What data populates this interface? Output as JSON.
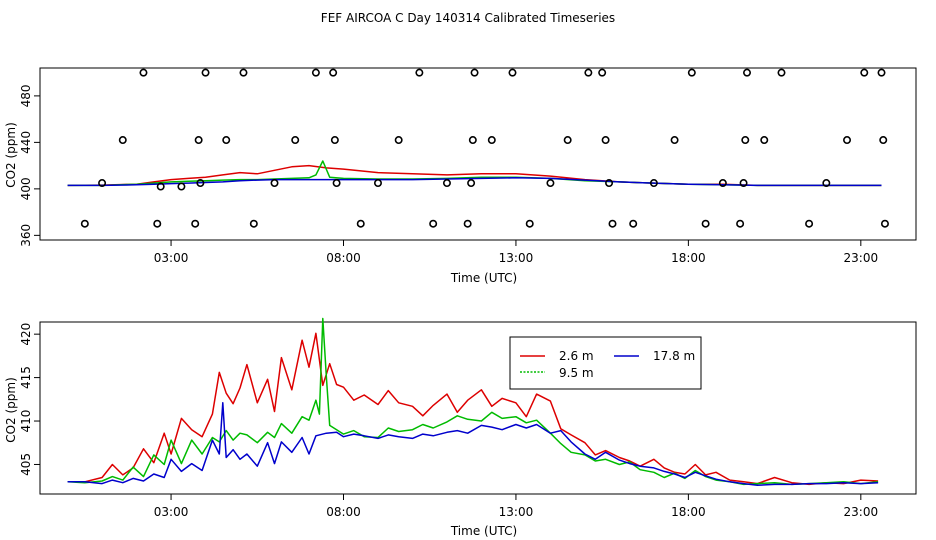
{
  "figure": {
    "title": "FEF AIRCOA C  Day 140314  Calibrated Timeseries"
  },
  "chart_data": [
    {
      "type": "scatter",
      "title": "",
      "xlabel": "Time (UTC)",
      "ylabel": "CO2 (ppm)",
      "xlim": [
        -0.8,
        24.6
      ],
      "ylim": [
        356,
        504
      ],
      "x_ticks": [
        3,
        8,
        13,
        18,
        23
      ],
      "x_tick_labels": [
        "03:00",
        "08:00",
        "13:00",
        "18:00",
        "23:00"
      ],
      "y_ticks": [
        360,
        400,
        440,
        480
      ],
      "y_tick_labels": [
        "360",
        "400",
        "440",
        "480"
      ],
      "series": [
        {
          "name": "2.6 m",
          "color": "#dd0000",
          "kind": "line",
          "x": [
            0.0,
            1.0,
            2.0,
            2.5,
            3.0,
            3.5,
            4.0,
            4.5,
            5.0,
            5.5,
            6.0,
            6.5,
            7.0,
            7.5,
            8.0,
            9.0,
            10.0,
            11.0,
            12.0,
            13.0,
            14.0,
            15.0,
            16.0,
            17.0,
            18.0,
            19.0,
            20.0,
            21.0,
            22.0,
            23.0,
            23.6
          ],
          "y": [
            403,
            403.2,
            404,
            406,
            408,
            409,
            410,
            412,
            414,
            413,
            416,
            419,
            420,
            418,
            417,
            414,
            413,
            412,
            413,
            413,
            411,
            408,
            406,
            405,
            404,
            404,
            403,
            403,
            403,
            403,
            403
          ]
        },
        {
          "name": "9.5 m",
          "color": "#00bb00",
          "kind": "line",
          "x": [
            0.0,
            1.0,
            2.0,
            2.5,
            3.0,
            3.5,
            4.0,
            4.5,
            5.0,
            5.5,
            6.0,
            6.5,
            7.0,
            7.2,
            7.4,
            7.6,
            8.0,
            9.0,
            10.0,
            11.0,
            12.0,
            13.0,
            14.0,
            15.0,
            16.0,
            17.0,
            18.0,
            19.0,
            20.0,
            21.0,
            22.0,
            23.0,
            23.6
          ],
          "y": [
            403,
            403,
            404,
            405,
            406,
            406.5,
            407,
            407.5,
            408,
            408,
            408.5,
            409,
            409.5,
            412,
            424,
            410,
            409,
            408.5,
            408.5,
            409,
            410,
            410,
            409,
            407,
            406,
            405,
            404,
            403.5,
            403,
            403,
            403,
            403,
            403
          ]
        },
        {
          "name": "17.8 m",
          "color": "#0000cc",
          "kind": "line",
          "x": [
            0.0,
            1.0,
            2.0,
            2.5,
            3.0,
            3.5,
            4.0,
            4.5,
            5.0,
            5.5,
            6.0,
            6.5,
            7.0,
            7.5,
            8.0,
            9.0,
            10.0,
            11.0,
            12.0,
            13.0,
            14.0,
            15.0,
            16.0,
            17.0,
            18.0,
            19.0,
            20.0,
            21.0,
            22.0,
            23.0,
            23.6
          ],
          "y": [
            403,
            403,
            403.5,
            404,
            404.5,
            405,
            405.5,
            406,
            407,
            407.5,
            408,
            408,
            408,
            408,
            408,
            408,
            408,
            408.5,
            409,
            409.5,
            409,
            407.5,
            406,
            405,
            404,
            403.5,
            403,
            403,
            403,
            403,
            403
          ]
        },
        {
          "name": "outliers",
          "color": "#000000",
          "kind": "points",
          "x": [
            0.5,
            1.0,
            1.6,
            2.2,
            2.6,
            2.7,
            3.3,
            3.7,
            3.8,
            3.85,
            4.0,
            4.6,
            5.1,
            5.4,
            6.0,
            6.6,
            7.2,
            7.7,
            7.75,
            7.8,
            8.5,
            9.0,
            9.6,
            10.2,
            10.6,
            11.0,
            11.6,
            11.7,
            11.75,
            11.8,
            12.3,
            12.9,
            13.4,
            14.0,
            14.5,
            15.1,
            15.5,
            15.6,
            15.7,
            15.8,
            16.4,
            17.0,
            17.6,
            18.1,
            18.5,
            19.0,
            19.5,
            19.6,
            19.65,
            19.7,
            20.2,
            20.7,
            21.5,
            22.0,
            22.6,
            23.1,
            23.6,
            23.65,
            23.7
          ],
          "y": [
            370,
            405,
            442,
            500,
            370,
            402,
            402,
            370,
            442,
            405,
            500,
            442,
            500,
            370,
            405,
            442,
            500,
            500,
            442,
            405,
            370,
            405,
            442,
            500,
            370,
            405,
            370,
            405,
            442,
            500,
            442,
            500,
            370,
            405,
            442,
            500,
            500,
            442,
            405,
            370,
            370,
            405,
            442,
            500,
            370,
            405,
            370,
            405,
            442,
            500,
            442,
            500,
            370,
            405,
            442,
            500,
            500,
            442,
            370
          ]
        }
      ]
    },
    {
      "type": "line",
      "title": "",
      "xlabel": "Time (UTC)",
      "ylabel": "CO2 (ppm)",
      "xlim": [
        -0.8,
        24.6
      ],
      "ylim": [
        401.6,
        421.4
      ],
      "x_ticks": [
        3,
        8,
        13,
        18,
        23
      ],
      "x_tick_labels": [
        "03:00",
        "08:00",
        "13:00",
        "18:00",
        "23:00"
      ],
      "y_ticks": [
        405,
        410,
        415,
        420
      ],
      "y_tick_labels": [
        "405",
        "410",
        "415",
        "420"
      ],
      "legend": {
        "position": "top-center",
        "entries": [
          "2.6 m",
          "9.5 m",
          "17.8 m"
        ]
      },
      "series": [
        {
          "name": "2.6 m",
          "color": "#dd0000",
          "x": [
            0.0,
            0.5,
            1.0,
            1.3,
            1.6,
            1.9,
            2.2,
            2.5,
            2.8,
            3.0,
            3.3,
            3.6,
            3.9,
            4.2,
            4.4,
            4.6,
            4.8,
            5.0,
            5.2,
            5.5,
            5.8,
            6.0,
            6.2,
            6.5,
            6.8,
            7.0,
            7.2,
            7.4,
            7.6,
            7.8,
            8.0,
            8.3,
            8.6,
            9.0,
            9.3,
            9.6,
            10.0,
            10.3,
            10.6,
            11.0,
            11.3,
            11.6,
            12.0,
            12.3,
            12.6,
            13.0,
            13.3,
            13.6,
            14.0,
            14.3,
            14.6,
            15.0,
            15.3,
            15.6,
            16.0,
            16.3,
            16.6,
            17.0,
            17.3,
            17.6,
            17.9,
            18.2,
            18.5,
            18.8,
            19.2,
            19.6,
            20.0,
            20.5,
            21.0,
            21.5,
            22.0,
            22.5,
            23.0,
            23.5
          ],
          "y": [
            403,
            403,
            403.5,
            405,
            403.8,
            404.6,
            406.8,
            405.2,
            408.6,
            406.2,
            410.3,
            409,
            408.2,
            410.8,
            415.6,
            413.2,
            412,
            413.8,
            416.5,
            412.1,
            414.8,
            411.1,
            417.3,
            413.6,
            419.3,
            416.2,
            420.1,
            414.1,
            416.6,
            414.2,
            413.9,
            412.4,
            413,
            411.9,
            413.5,
            412.1,
            411.7,
            410.6,
            411.8,
            413.1,
            411,
            412.4,
            413.6,
            411.7,
            412.6,
            412.1,
            410.5,
            413.1,
            412.3,
            409.1,
            408.4,
            407.5,
            406.1,
            406.6,
            405.8,
            405.4,
            404.8,
            405.6,
            404.6,
            404.1,
            403.9,
            405,
            403.8,
            404.1,
            403.2,
            403,
            402.8,
            403.5,
            402.9,
            402.7,
            402.9,
            402.8,
            403.2,
            403.1
          ]
        },
        {
          "name": "9.5 m",
          "color": "#00bb00",
          "x": [
            0.0,
            0.5,
            1.0,
            1.3,
            1.6,
            1.9,
            2.2,
            2.5,
            2.8,
            3.0,
            3.3,
            3.6,
            3.9,
            4.2,
            4.4,
            4.6,
            4.8,
            5.0,
            5.2,
            5.5,
            5.8,
            6.0,
            6.2,
            6.5,
            6.8,
            7.0,
            7.2,
            7.3,
            7.4,
            7.5,
            7.6,
            7.8,
            8.0,
            8.3,
            8.6,
            9.0,
            9.3,
            9.6,
            10.0,
            10.3,
            10.6,
            11.0,
            11.3,
            11.6,
            12.0,
            12.3,
            12.6,
            13.0,
            13.3,
            13.6,
            14.0,
            14.3,
            14.6,
            15.0,
            15.3,
            15.6,
            16.0,
            16.3,
            16.6,
            17.0,
            17.3,
            17.6,
            17.9,
            18.2,
            18.5,
            18.8,
            19.2,
            19.6,
            20.0,
            20.5,
            21.0,
            21.5,
            22.0,
            22.5,
            23.0,
            23.5
          ],
          "y": [
            403,
            402.9,
            403.1,
            403.6,
            403.2,
            404.7,
            403.6,
            406.1,
            405,
            407.8,
            405.1,
            407.8,
            406.2,
            408.1,
            407.6,
            408.9,
            407.8,
            408.6,
            408.4,
            407.5,
            408.7,
            408.1,
            409.7,
            408.6,
            410.5,
            410.1,
            412.4,
            410.8,
            421.8,
            415.2,
            409.5,
            409,
            408.5,
            408.9,
            408.2,
            408.1,
            409.2,
            408.8,
            409,
            409.6,
            409.2,
            409.9,
            410.6,
            410.2,
            410,
            411,
            410.3,
            410.5,
            409.8,
            410.1,
            408.6,
            407.4,
            406.4,
            406.1,
            405.4,
            405.6,
            405,
            405.3,
            404.4,
            404.1,
            403.5,
            404,
            403.4,
            404.3,
            403.6,
            403.2,
            403,
            402.7,
            402.8,
            402.9,
            402.7,
            402.8,
            402.9,
            403,
            402.8,
            403
          ]
        },
        {
          "name": "17.8 m",
          "color": "#0000cc",
          "x": [
            0.0,
            0.5,
            1.0,
            1.3,
            1.6,
            1.9,
            2.2,
            2.5,
            2.8,
            3.0,
            3.3,
            3.6,
            3.9,
            4.2,
            4.4,
            4.5,
            4.6,
            4.8,
            5.0,
            5.2,
            5.5,
            5.8,
            6.0,
            6.2,
            6.5,
            6.8,
            7.0,
            7.2,
            7.5,
            7.8,
            8.0,
            8.3,
            8.6,
            9.0,
            9.3,
            9.6,
            10.0,
            10.3,
            10.6,
            11.0,
            11.3,
            11.6,
            12.0,
            12.3,
            12.6,
            13.0,
            13.3,
            13.6,
            14.0,
            14.3,
            14.6,
            15.0,
            15.3,
            15.6,
            16.0,
            16.3,
            16.6,
            17.0,
            17.3,
            17.6,
            17.9,
            18.2,
            18.5,
            18.8,
            19.2,
            19.6,
            20.0,
            20.5,
            21.0,
            21.5,
            22.0,
            22.5,
            23.0,
            23.5
          ],
          "y": [
            403,
            403,
            402.8,
            403.2,
            402.9,
            403.4,
            403.1,
            403.9,
            403.5,
            405.6,
            404.2,
            405.1,
            404.3,
            407.8,
            406.2,
            412.1,
            405.8,
            406.7,
            405.6,
            406.2,
            404.8,
            407.5,
            405.1,
            407.6,
            406.4,
            408.1,
            406.2,
            408.3,
            408.6,
            408.7,
            408.2,
            408.5,
            408.3,
            408,
            408.4,
            408.2,
            408,
            408.5,
            408.3,
            408.7,
            408.9,
            408.6,
            409.5,
            409.3,
            409,
            409.6,
            409.2,
            409.6,
            408.6,
            408.9,
            407.6,
            406.2,
            405.6,
            406.4,
            405.5,
            405.1,
            404.8,
            404.6,
            404.2,
            403.9,
            403.5,
            404.1,
            403.7,
            403.3,
            403,
            402.8,
            402.6,
            402.7,
            402.7,
            402.8,
            402.8,
            402.9,
            402.8,
            402.9
          ]
        }
      ]
    }
  ]
}
